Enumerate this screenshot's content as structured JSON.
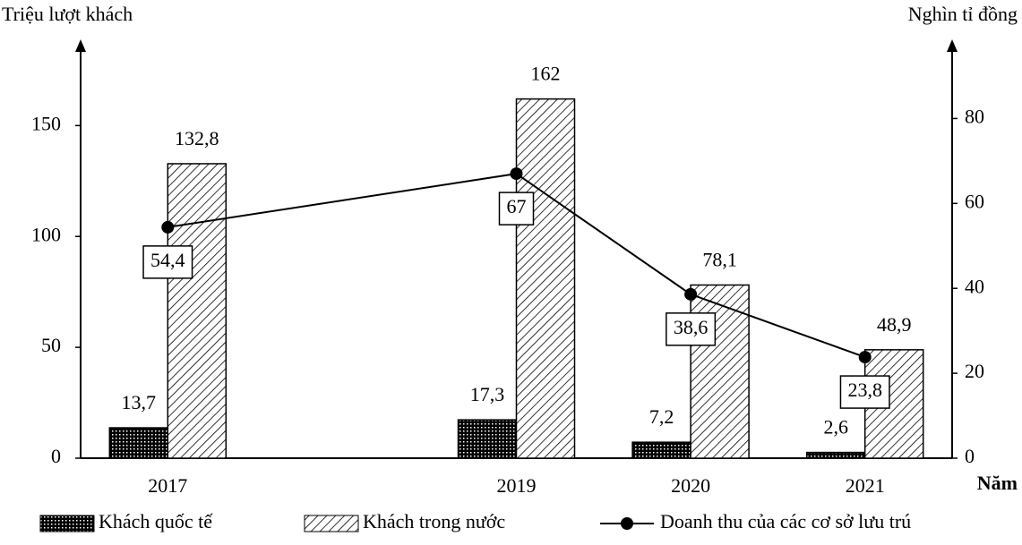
{
  "chart_data": {
    "type": "bar-line",
    "y_label": "Triệu lượt khách",
    "y2_label": "Nghìn tỉ đồng",
    "x_label": "Năm",
    "x": [
      2017,
      2019,
      2020,
      2021
    ],
    "xlim": [
      2016.5,
      2021.5
    ],
    "ylim": [
      0,
      180
    ],
    "yticks": [
      0,
      50,
      100,
      150
    ],
    "y2lim": [
      0,
      94
    ],
    "y2ticks": [
      0,
      20,
      40,
      60,
      80
    ],
    "series": [
      {
        "name": "Khách quốc tế",
        "type": "bar",
        "color": "#000000",
        "values": [
          13.7,
          17.3,
          7.2,
          2.6
        ],
        "value_labels": [
          "13,7",
          "17,3",
          "7,2",
          "2,6"
        ]
      },
      {
        "name": "Khách trong nước",
        "type": "bar",
        "color": "#000000",
        "values": [
          132.8,
          162,
          78.1,
          48.9
        ],
        "value_labels": [
          "132,8",
          "162",
          "78,1",
          "48,9"
        ]
      },
      {
        "name": "Doanh thu của các cơ sở lưu trú",
        "type": "line",
        "axis": "y2",
        "color": "#000000",
        "values": [
          54.4,
          67,
          38.6,
          23.8
        ],
        "value_labels": [
          "54,4",
          "67",
          "38,6",
          "23,8"
        ]
      }
    ]
  }
}
